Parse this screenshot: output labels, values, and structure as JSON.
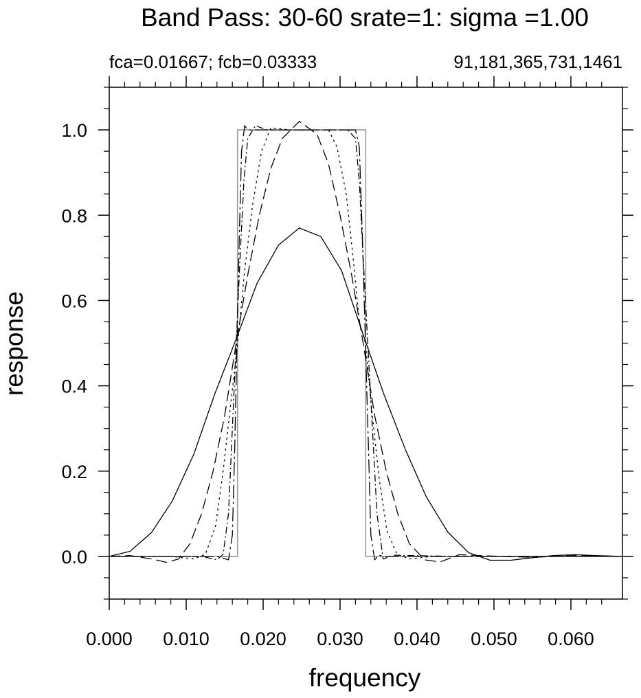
{
  "chart_data": {
    "type": "line",
    "title": "Band Pass: 30-60 srate=1:  sigma =1.00",
    "subtitle_left": "fca=0.01667; fcb=0.03333",
    "subtitle_right": "91,181,365,731,1461",
    "xlabel": "frequency",
    "ylabel": "response",
    "xlim": [
      0,
      0.0667
    ],
    "ylim": [
      -0.1,
      1.1
    ],
    "x_ticks": [
      0,
      0.01,
      0.02,
      0.03,
      0.04,
      0.05,
      0.06
    ],
    "x_tick_labels": [
      "0.000",
      "0.010",
      "0.020",
      "0.030",
      "0.040",
      "0.050",
      "0.060"
    ],
    "y_ticks": [
      0,
      0.2,
      0.4,
      0.6,
      0.8,
      1.0
    ],
    "y_tick_labels": [
      "0.0",
      "0.2",
      "0.4",
      "0.6",
      "0.8",
      "1.0"
    ],
    "grid": false,
    "legend": "none",
    "ideal_response": {
      "color": "#999999",
      "x": [
        0,
        0.01667,
        0.01667,
        0.03333,
        0.03333,
        0.0667
      ],
      "y": [
        0,
        0,
        1.0,
        1.0,
        0,
        0
      ]
    },
    "series": [
      {
        "dash": "solid",
        "x": [
          0,
          0.0027,
          0.0055,
          0.0082,
          0.011,
          0.0137,
          0.0165,
          0.0192,
          0.022,
          0.0247,
          0.0275,
          0.0302,
          0.033,
          0.0357,
          0.0385,
          0.0412,
          0.044,
          0.0467,
          0.0495,
          0.0522,
          0.055,
          0.0577,
          0.0605,
          0.0632,
          0.0667
        ],
        "y": [
          0,
          0.012,
          0.056,
          0.13,
          0.24,
          0.38,
          0.51,
          0.64,
          0.73,
          0.77,
          0.75,
          0.67,
          0.52,
          0.38,
          0.25,
          0.14,
          0.057,
          0.009,
          -0.009,
          -0.009,
          -0.003,
          0.002,
          0.004,
          0.002,
          0
        ]
      },
      {
        "dash": "long-dash",
        "x": [
          0,
          0.0027,
          0.0055,
          0.0075,
          0.009,
          0.0105,
          0.012,
          0.0135,
          0.015,
          0.0165,
          0.018,
          0.0195,
          0.021,
          0.0225,
          0.0247,
          0.027,
          0.0285,
          0.03,
          0.0315,
          0.033,
          0.0345,
          0.036,
          0.0375,
          0.039,
          0.041,
          0.043,
          0.0455,
          0.0495,
          0.055,
          0.0605,
          0.0667
        ],
        "y": [
          0,
          0.002,
          -0.006,
          -0.014,
          -0.006,
          0.03,
          0.1,
          0.2,
          0.33,
          0.5,
          0.66,
          0.8,
          0.91,
          0.98,
          1.02,
          0.99,
          0.92,
          0.8,
          0.66,
          0.5,
          0.33,
          0.2,
          0.1,
          0.03,
          -0.008,
          -0.013,
          0.004,
          0.001,
          -0.002,
          0.002,
          0
        ]
      },
      {
        "dash": "dotted",
        "x": [
          0,
          0.008,
          0.011,
          0.0125,
          0.0138,
          0.0148,
          0.0158,
          0.0167,
          0.0176,
          0.0186,
          0.0198,
          0.021,
          0.0235,
          0.026,
          0.0285,
          0.0296,
          0.0308,
          0.0317,
          0.0325,
          0.0333,
          0.0342,
          0.0351,
          0.0361,
          0.0374,
          0.039,
          0.042,
          0.0667
        ],
        "y": [
          0,
          0,
          -0.006,
          0.005,
          0.07,
          0.2,
          0.36,
          0.5,
          0.67,
          0.82,
          0.95,
          1.005,
          1.0,
          1.0,
          1.0,
          0.96,
          0.85,
          0.7,
          0.55,
          0.5,
          0.33,
          0.18,
          0.06,
          0.005,
          -0.006,
          0,
          0
        ]
      },
      {
        "dash": "dash-dot",
        "x": [
          0,
          0.012,
          0.014,
          0.0148,
          0.0155,
          0.016,
          0.0165,
          0.017,
          0.0175,
          0.018,
          0.019,
          0.0205,
          0.022,
          0.0247,
          0.028,
          0.031,
          0.032,
          0.0325,
          0.033,
          0.0336,
          0.0342,
          0.0348,
          0.0356,
          0.037,
          0.045,
          0.0667
        ],
        "y": [
          0,
          0,
          -0.008,
          0.005,
          0.1,
          0.3,
          0.5,
          0.7,
          0.88,
          0.98,
          1.01,
          1.0,
          1.0,
          1.0,
          1.0,
          1.0,
          0.98,
          0.88,
          0.7,
          0.5,
          0.3,
          0.1,
          -0.006,
          0.003,
          0,
          0
        ]
      },
      {
        "dash": "long-dash-dot",
        "x": [
          0,
          0.014,
          0.0155,
          0.016,
          0.0163,
          0.0166,
          0.0169,
          0.0172,
          0.0176,
          0.018,
          0.019,
          0.0247,
          0.031,
          0.032,
          0.0325,
          0.0329,
          0.0333,
          0.0337,
          0.034,
          0.0345,
          0.035,
          0.036,
          0.045,
          0.0667
        ],
        "y": [
          0,
          0,
          -0.008,
          0.05,
          0.25,
          0.5,
          0.75,
          0.95,
          1.01,
          1.0,
          1.0,
          1.0,
          1.0,
          1.0,
          0.96,
          0.75,
          0.5,
          0.25,
          0.05,
          -0.008,
          0.003,
          0,
          0,
          0
        ]
      }
    ]
  }
}
